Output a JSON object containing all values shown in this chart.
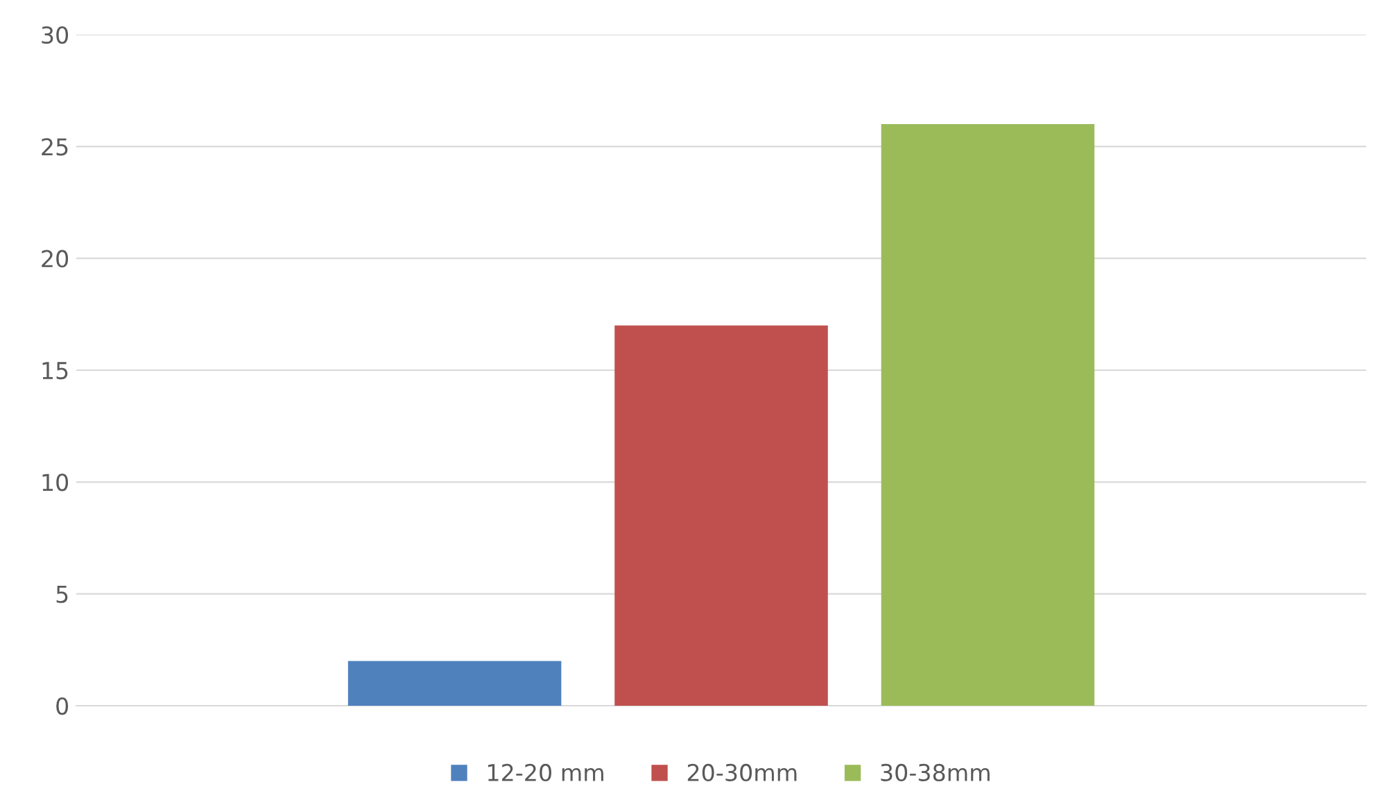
{
  "chart_data": {
    "type": "bar",
    "categories": [
      null
    ],
    "series": [
      {
        "name": "12-20 mm",
        "color": "#4f81bd",
        "values": [
          2
        ]
      },
      {
        "name": "20-30mm",
        "color": "#c0504d",
        "values": [
          17
        ]
      },
      {
        "name": "30-38mm",
        "color": "#9bbb59",
        "values": [
          26
        ]
      }
    ],
    "ylim": [
      0,
      30
    ],
    "yticks": [
      0,
      5,
      10,
      15,
      20,
      25,
      30
    ],
    "grid": "y",
    "legend": "bottom"
  }
}
